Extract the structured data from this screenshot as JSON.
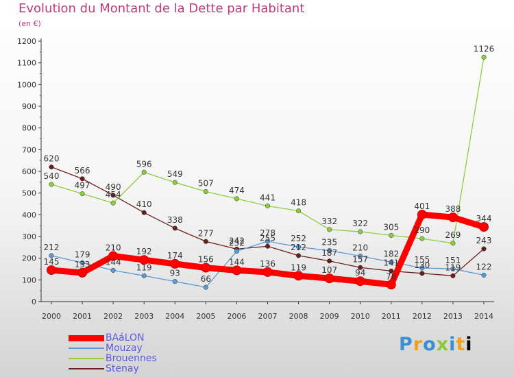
{
  "header": {
    "title": "Evolution du Montant de la Dette par Habitant",
    "unit": "(en €)"
  },
  "brand": {
    "text": "Proxiti"
  },
  "chart_data": {
    "type": "line",
    "title": "Evolution du Montant de la Dette par Habitant",
    "subtitle": "(en €)",
    "xlabel": "",
    "ylabel": "",
    "x": [
      "2000",
      "2001",
      "2002",
      "2003",
      "2004",
      "2005",
      "2006",
      "2007",
      "2008",
      "2009",
      "2010",
      "2011",
      "2012",
      "2013",
      "2014"
    ],
    "ylim": [
      0,
      1200
    ],
    "yticks": [
      0,
      100,
      200,
      300,
      400,
      500,
      600,
      700,
      800,
      900,
      1000,
      1100,
      1200
    ],
    "grid": false,
    "legend_position": "bottom-left",
    "series": [
      {
        "name": "BAáLON",
        "color": "#ff0000",
        "values": [
          145,
          133,
          210,
          192,
          174,
          156,
          144,
          136,
          119,
          107,
          94,
          78,
          401,
          388,
          344
        ]
      },
      {
        "name": "Mouzay",
        "color": "#5b9bd5",
        "values": [
          212,
          179,
          144,
          119,
          93,
          66,
          232,
          278,
          252,
          235,
          210,
          182,
          155,
          151,
          122
        ]
      },
      {
        "name": "Brouennes",
        "color": "#8ccd3c",
        "values": [
          540,
          497,
          454,
          596,
          549,
          507,
          474,
          441,
          418,
          332,
          322,
          305,
          290,
          269,
          1126
        ]
      },
      {
        "name": "Stenay",
        "color": "#6b1e1e",
        "values": [
          620,
          566,
          490,
          410,
          338,
          277,
          242,
          255,
          212,
          187,
          157,
          141,
          130,
          119,
          243
        ]
      }
    ]
  }
}
